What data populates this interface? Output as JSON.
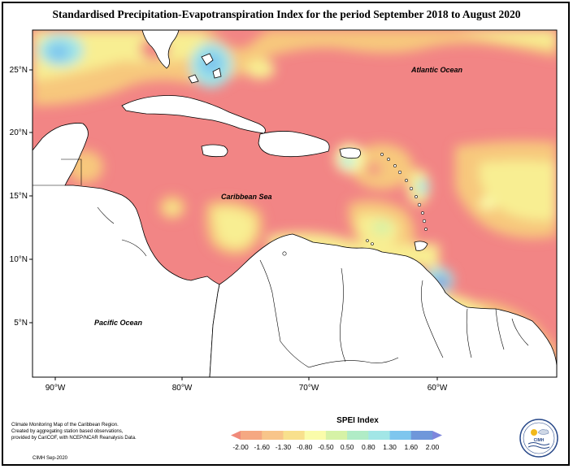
{
  "title": "Standardised Precipitation-Evapotranspiration Index for the period September 2018 to August 2020",
  "map": {
    "lon_range": [
      -92,
      -52
    ],
    "lat_range": [
      1,
      28
    ],
    "lon_ticks": [
      "90°W",
      "80°W",
      "70°W",
      "60°W"
    ],
    "lat_ticks": [
      "25°N",
      "20°N",
      "15°N",
      "10°N",
      "5°N"
    ],
    "ocean_labels": {
      "atlantic": "Atlantic Ocean",
      "caribbean": "Caribbean Sea",
      "pacific": "Pacific Ocean"
    },
    "colors": {
      "extreme_dry": "#f28585",
      "moderate_dry": "#f7b079",
      "slight_dry": "#f7e07a",
      "near_normal": "#fafcaa",
      "slight_wet": "#c7f0a0",
      "moderate_wet": "#a2e6e6",
      "very_wet": "#7ec6ee",
      "extreme_wet": "#7d86dc",
      "land": "#ffffff"
    }
  },
  "legend": {
    "title": "SPEI Index",
    "ticks": [
      "-2.00",
      "-1.60",
      "-1.30",
      "-0.80",
      "-0.50",
      "0.50",
      "0.80",
      "1.30",
      "1.60",
      "2.00"
    ],
    "colors": [
      "#f08a7a",
      "#f5a882",
      "#f8c58a",
      "#f8e08d",
      "#fafcaa",
      "#d6f2a6",
      "#b0ecc6",
      "#a2e6e6",
      "#7ec6ee",
      "#6f97da",
      "#7d86dc"
    ]
  },
  "credits": {
    "lines": [
      "Climate Monitoring Map of the Caribbean Region.",
      "Created by aggregating station based observations,",
      "provided by CariCOF, with NCEP/NCAR Reanalysis Data."
    ],
    "stamp": "CIMH Sep-2020"
  },
  "logo": {
    "text": "CIMH",
    "icon": "cimh-globe-icon"
  }
}
